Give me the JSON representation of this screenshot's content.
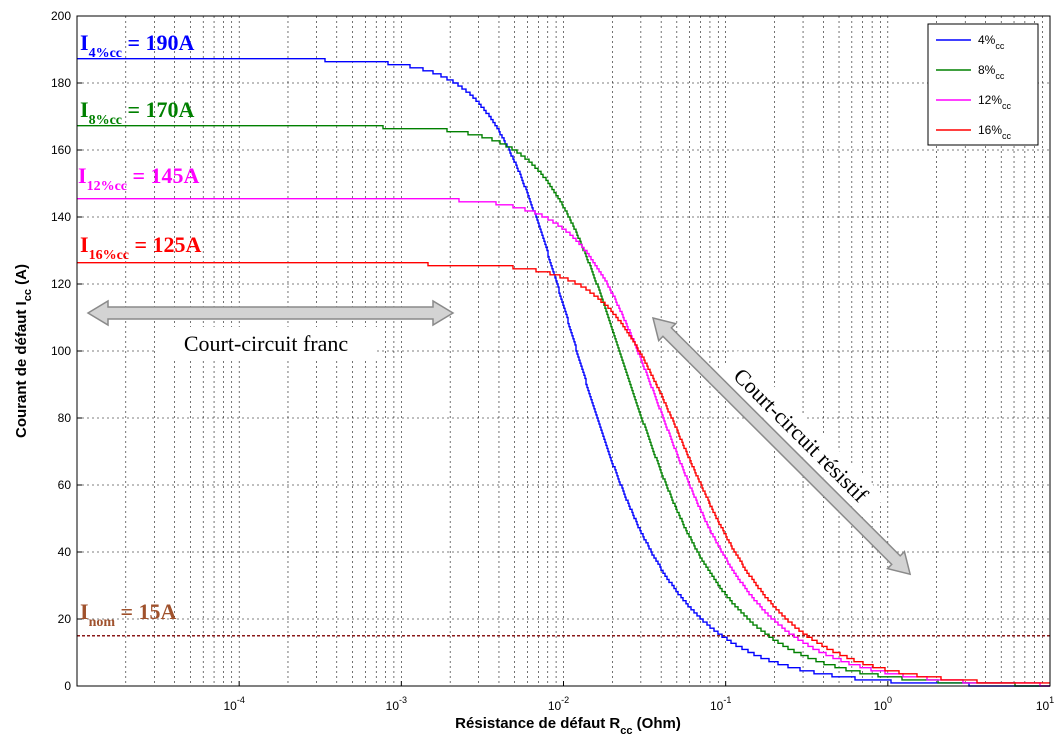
{
  "chart_data": {
    "type": "line",
    "x_scale": "log",
    "xlim": [
      1e-05,
      10
    ],
    "ylim": [
      0,
      200
    ],
    "grid": true,
    "xlabel": {
      "main": "Résistance de défaut R",
      "sub": "cc",
      "tail": " (Ohm)"
    },
    "ylabel": {
      "main": "Courant de défaut I",
      "sub": "cc",
      "tail": "  (A)"
    },
    "x_ticks": [
      {
        "value": 0.0001,
        "base": "10",
        "exp": "-4"
      },
      {
        "value": 0.001,
        "base": "10",
        "exp": "-3"
      },
      {
        "value": 0.01,
        "base": "10",
        "exp": "-2"
      },
      {
        "value": 0.1,
        "base": "10",
        "exp": "-1"
      },
      {
        "value": 1,
        "base": "10",
        "exp": "0"
      },
      {
        "value": 10,
        "base": "10",
        "exp": "1"
      }
    ],
    "y_ticks": [
      "0",
      "20",
      "40",
      "60",
      "80",
      "100",
      "120",
      "140",
      "160",
      "180",
      "200"
    ],
    "legend_position": "top-right",
    "series": [
      {
        "name": "4%",
        "name_sub": "cc",
        "color": "#0000ff",
        "i0": 187,
        "R0": 0.0076,
        "step": true
      },
      {
        "name": "8%",
        "name_sub": "cc",
        "color": "#008000",
        "i0": 167,
        "R0": 0.0165,
        "step": true
      },
      {
        "name": "12%",
        "name_sub": "cc",
        "color": "#ff00ff",
        "i0": 145.5,
        "R0": 0.027,
        "step": true
      },
      {
        "name": "16%",
        "name_sub": "cc",
        "color": "#ff0000",
        "i0": 126,
        "R0": 0.038,
        "step": true
      }
    ],
    "nominal_line": {
      "value": 15,
      "color": "#8b1a1a",
      "style": "dotted"
    },
    "annotations": [
      {
        "main": "I",
        "sub": "4%cc",
        "tail": " = 190A",
        "color": "#0000ff"
      },
      {
        "main": "I",
        "sub": "8%cc",
        "tail": " = 170A",
        "color": "#008000"
      },
      {
        "main": "I",
        "sub": "12%cc",
        "tail": " = 145A",
        "color": "#ff00ff"
      },
      {
        "main": "I",
        "sub": "16%cc",
        "tail": " = 125A",
        "color": "#ff0000"
      },
      {
        "main": "I",
        "sub": "nom",
        "tail": " = 15A",
        "color": "#a0522d"
      }
    ],
    "regions": [
      {
        "label": "Court-circuit franc"
      },
      {
        "label": "Court-circuit résistif"
      }
    ]
  }
}
